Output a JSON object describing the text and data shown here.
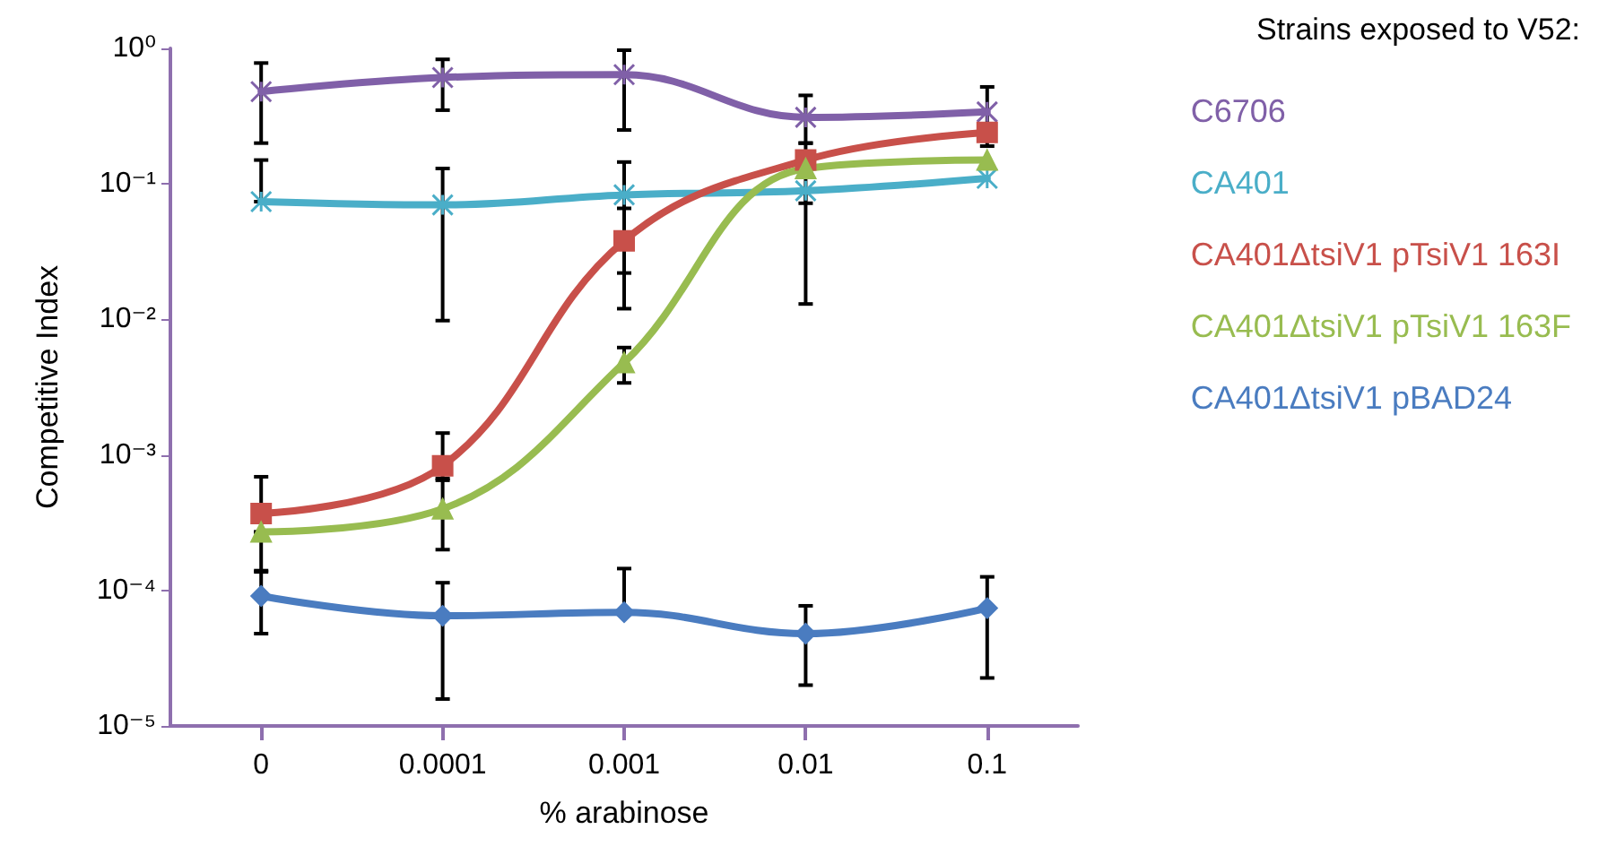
{
  "chart_data": {
    "type": "line",
    "xlabel": "% arabinose",
    "ylabel": "Competitive Index",
    "legend_title": "Strains exposed to V52:",
    "categories": [
      "0",
      "0.0001",
      "0.001",
      "0.01",
      "0.1"
    ],
    "log": "y",
    "ylim": [
      1e-05,
      1
    ],
    "yticks": [
      {
        "value": 1e-05,
        "label": "10⁻⁵"
      },
      {
        "value": 0.0001,
        "label": "10⁻⁴"
      },
      {
        "value": 0.001,
        "label": "10⁻³"
      },
      {
        "value": 0.01,
        "label": "10⁻²"
      },
      {
        "value": 0.1,
        "label": "10⁻¹"
      },
      {
        "value": 1,
        "label": "10⁰"
      }
    ],
    "grid": false,
    "legend": "right",
    "line_style": "solid",
    "series": [
      {
        "name": "C6706",
        "color": "#8060a8",
        "marker": "cross",
        "values": [
          0.48,
          0.61,
          0.64,
          0.31,
          0.34
        ],
        "errors": [
          [
            0.2,
            0.78
          ],
          [
            0.35,
            0.83
          ],
          [
            0.25,
            0.97
          ],
          [
            0.2,
            0.45
          ],
          [
            0.19,
            0.52
          ]
        ]
      },
      {
        "name": "CA401",
        "color": "#4aaec8",
        "marker": "cross",
        "values": [
          0.074,
          0.07,
          0.083,
          0.089,
          0.11
        ],
        "errors": [
          [
            0.074,
            0.15
          ],
          [
            0.0098,
            0.13
          ],
          [
            0.022,
            0.145
          ],
          [
            0.013,
            0.089
          ],
          null
        ]
      },
      {
        "name": "CA401ΔtsiV1 pTsiV1 163I",
        "color": "#c8504a",
        "marker": "square",
        "values": [
          0.00037,
          0.00083,
          0.038,
          0.15,
          0.24
        ],
        "errors": [
          [
            0.00027,
            0.00069
          ],
          [
            0.00065,
            0.00145
          ],
          [
            0.012,
            0.066
          ],
          [
            0.072,
            0.2
          ],
          null
        ]
      },
      {
        "name": "CA401ΔtsiV1 pTsiV1 163F",
        "color": "#98bc50",
        "marker": "triangle",
        "values": [
          0.00027,
          0.0004,
          0.0048,
          0.13,
          0.15
        ],
        "errors": [
          [
            0.00014,
            0.00027
          ],
          [
            0.0002,
            0.00067
          ],
          [
            0.0034,
            0.0062
          ],
          null,
          null
        ]
      },
      {
        "name": "CA401ΔtsiV1 pBAD24",
        "color": "#4a7cc0",
        "marker": "diamond",
        "values": [
          9.1e-05,
          6.5e-05,
          6.9e-05,
          4.8e-05,
          7.4e-05
        ],
        "errors": [
          [
            4.8e-05,
            0.000137
          ],
          [
            1.58e-05,
            0.000114
          ],
          [
            6.9e-05,
            0.000145
          ],
          [
            2e-05,
            7.7e-05
          ],
          [
            2.26e-05,
            0.000126
          ]
        ]
      }
    ]
  }
}
